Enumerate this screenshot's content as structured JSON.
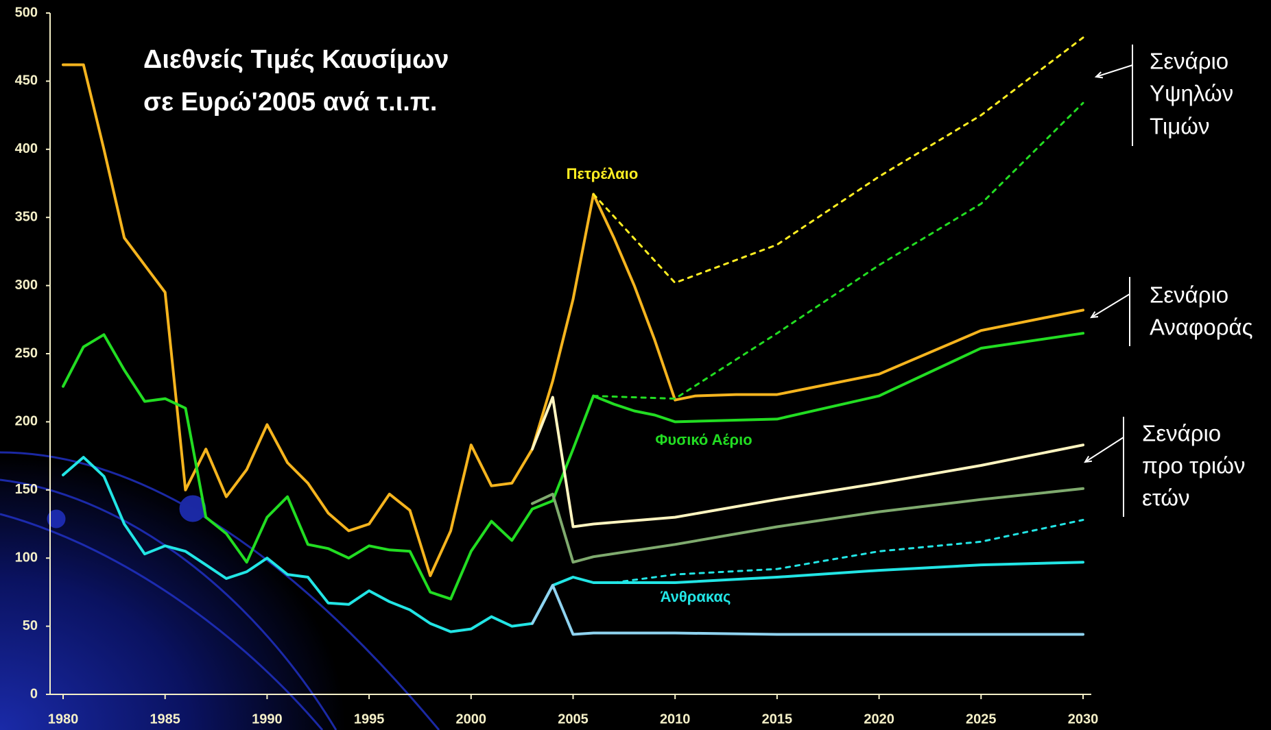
{
  "chart_data": {
    "type": "line",
    "title": [
      "Διεθνείς Τιμές Καυσίμων",
      "σε Ευρώ'2005 ανά τ.ι.π."
    ],
    "xlim": [
      1980,
      2030
    ],
    "xticks": [
      1980,
      1985,
      1990,
      1995,
      2000,
      2005,
      2010,
      2015,
      2020,
      2025,
      2030
    ],
    "ylim": [
      0,
      500
    ],
    "yticks": [
      0,
      50,
      100,
      150,
      200,
      250,
      300,
      350,
      400,
      450,
      500
    ],
    "series": [
      {
        "name": "Πετρέλαιο",
        "color": "#f5b41e",
        "dashed": false,
        "x": [
          1980,
          1981,
          1982,
          1983,
          1984,
          1985,
          1986,
          1987,
          1988,
          1989,
          1990,
          1991,
          1992,
          1993,
          1994,
          1995,
          1996,
          1997,
          1998,
          1999,
          2000,
          2001,
          2002,
          2003,
          2004,
          2005,
          2006,
          2007,
          2008,
          2009,
          2010,
          2011,
          2013,
          2015,
          2020,
          2025,
          2030
        ],
        "values": [
          462,
          462,
          400,
          335,
          315,
          295,
          150,
          180,
          145,
          165,
          198,
          170,
          155,
          133,
          120,
          125,
          147,
          135,
          87,
          120,
          183,
          153,
          155,
          180,
          230,
          290,
          367,
          335,
          300,
          260,
          216,
          219,
          220,
          220,
          235,
          267,
          282
        ]
      },
      {
        "name": "Φυσικό Αέριο",
        "color": "#22dd22",
        "dashed": false,
        "x": [
          1980,
          1981,
          1982,
          1983,
          1984,
          1985,
          1986,
          1987,
          1988,
          1989,
          1990,
          1991,
          1992,
          1993,
          1994,
          1995,
          1996,
          1997,
          1998,
          1999,
          2000,
          2001,
          2002,
          2003,
          2004,
          2005,
          2006,
          2007,
          2008,
          2009,
          2010,
          2015,
          2020,
          2025,
          2030
        ],
        "values": [
          226,
          255,
          264,
          238,
          215,
          217,
          210,
          130,
          118,
          97,
          130,
          145,
          110,
          107,
          100,
          109,
          106,
          105,
          75,
          70,
          105,
          127,
          113,
          136,
          142,
          180,
          219,
          213,
          208,
          205,
          200,
          202,
          219,
          254,
          265
        ]
      },
      {
        "name": "Άνθρακας",
        "color": "#22e5e5",
        "dashed": false,
        "x": [
          1980,
          1981,
          1982,
          1983,
          1984,
          1985,
          1986,
          1987,
          1988,
          1989,
          1990,
          1991,
          1992,
          1993,
          1994,
          1995,
          1996,
          1997,
          1998,
          1999,
          2000,
          2001,
          2002,
          2003,
          2004,
          2005,
          2006,
          2007,
          2010,
          2015,
          2020,
          2025,
          2030
        ],
        "values": [
          161,
          174,
          160,
          125,
          103,
          109,
          105,
          95,
          85,
          90,
          100,
          88,
          86,
          67,
          66,
          76,
          68,
          62,
          52,
          46,
          48,
          57,
          50,
          52,
          80,
          86,
          82,
          82,
          82,
          86,
          91,
          95,
          97
        ]
      },
      {
        "color": "#ffee22",
        "dashed": true,
        "x": [
          2006,
          2010,
          2015,
          2020,
          2025,
          2030
        ],
        "values": [
          367,
          302,
          330,
          380,
          425,
          482
        ]
      },
      {
        "color": "#22dd22",
        "dashed": true,
        "x": [
          2006,
          2010,
          2015,
          2020,
          2025,
          2030
        ],
        "values": [
          219,
          217,
          265,
          315,
          360,
          434
        ]
      },
      {
        "color": "#22e5e5",
        "dashed": true,
        "x": [
          2007,
          2010,
          2015,
          2020,
          2025,
          2030
        ],
        "values": [
          82,
          88,
          92,
          105,
          112,
          128
        ]
      },
      {
        "color": "#fff5c0",
        "dashed": false,
        "x": [
          2003,
          2004,
          2005,
          2006,
          2010,
          2015,
          2020,
          2025,
          2030
        ],
        "values": [
          180,
          218,
          123,
          125,
          130,
          143,
          155,
          168,
          183
        ]
      },
      {
        "color": "#7faa6e",
        "dashed": false,
        "x": [
          2003,
          2004,
          2005,
          2006,
          2010,
          2015,
          2020,
          2025,
          2030
        ],
        "values": [
          140,
          147,
          97,
          101,
          110,
          123,
          134,
          143,
          151
        ]
      },
      {
        "color": "#8fd3f0",
        "dashed": false,
        "x": [
          2003,
          2004,
          2005,
          2006,
          2010,
          2015,
          2020,
          2025,
          2030
        ],
        "values": [
          52,
          80,
          44,
          45,
          45,
          44,
          44,
          44,
          44
        ]
      }
    ],
    "annotations": [
      {
        "lines": [
          "Σενάριο",
          "Υψηλών",
          "Τιμών"
        ]
      },
      {
        "lines": [
          "Σενάριο",
          "Αναφοράς"
        ]
      },
      {
        "lines": [
          "Σενάριο",
          "προ τριών",
          "ετών"
        ]
      }
    ]
  }
}
